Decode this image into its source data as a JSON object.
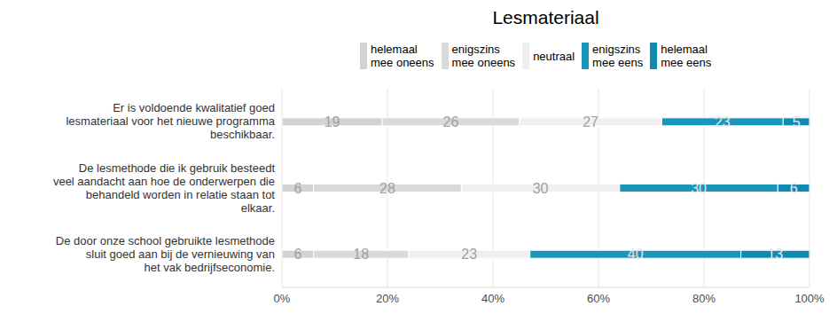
{
  "chart_data": {
    "type": "bar",
    "title": "Lesmateriaal",
    "orientation": "horizontal",
    "stacked": true,
    "data_labels": true,
    "grid": true,
    "legend": "top",
    "categories": [
      "Er is voldoende kwalitatief goed lesmateriaal voor het nieuwe programma beschikbaar.",
      "De lesmethode die ik gebruik besteedt veel aandacht aan hoe de onderwerpen die behandeld worden in relatie staan tot elkaar.",
      "De door onze school gebruikte lesmethode sluit goed aan bij de vernieuwing van het vak bedrijfseconomie."
    ],
    "series": [
      {
        "name": "helemaal mee oneens",
        "color": "#d3d3d3",
        "values": [
          19,
          6,
          6
        ]
      },
      {
        "name": "enigszins mee oneens",
        "color": "#d9d9d9",
        "values": [
          26,
          28,
          18
        ]
      },
      {
        "name": "neutraal",
        "color": "#efefef",
        "values": [
          27,
          30,
          23
        ]
      },
      {
        "name": "enigszins mee eens",
        "color": "#1a96ba",
        "values": [
          23,
          30,
          40
        ]
      },
      {
        "name": "helemaal mee eens",
        "color": "#0f8bb2",
        "values": [
          5,
          6,
          13
        ]
      }
    ],
    "xlim": [
      0,
      100
    ],
    "xticks": [
      {
        "value": 0,
        "label": "0%"
      },
      {
        "value": 20,
        "label": "20%"
      },
      {
        "value": 40,
        "label": "40%"
      },
      {
        "value": 60,
        "label": "60%"
      },
      {
        "value": 80,
        "label": "80%"
      },
      {
        "value": 100,
        "label": "100%"
      }
    ]
  }
}
